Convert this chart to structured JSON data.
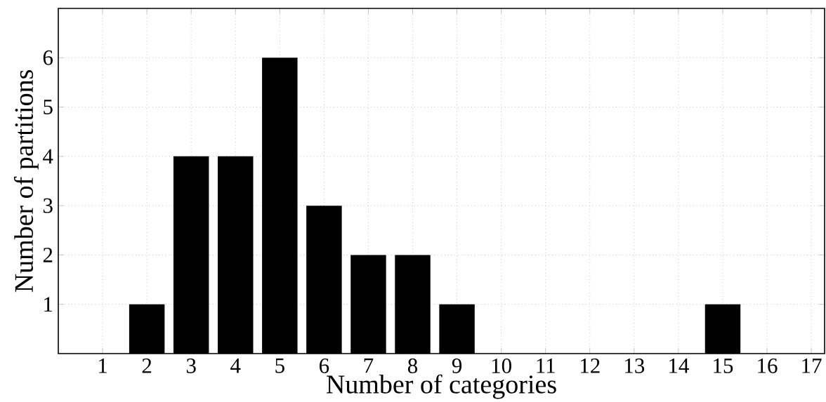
{
  "chart_data": {
    "type": "bar",
    "xlabel": "Number of categories",
    "ylabel": "Number of partitions",
    "x": [
      1,
      2,
      3,
      4,
      5,
      6,
      7,
      8,
      9,
      10,
      11,
      12,
      13,
      14,
      15,
      16,
      17
    ],
    "values": [
      0,
      1,
      4,
      4,
      6,
      3,
      2,
      2,
      1,
      0,
      0,
      0,
      0,
      0,
      1,
      0,
      0
    ],
    "color": "#000000",
    "xlim": [
      0,
      17.3
    ],
    "ylim": [
      0,
      7
    ],
    "xticks": [
      1,
      2,
      3,
      4,
      5,
      6,
      7,
      8,
      9,
      10,
      11,
      12,
      13,
      14,
      15,
      16,
      17
    ],
    "yticks": [
      1,
      2,
      3,
      4,
      5,
      6
    ],
    "grid": true,
    "line_style": "dotted"
  }
}
